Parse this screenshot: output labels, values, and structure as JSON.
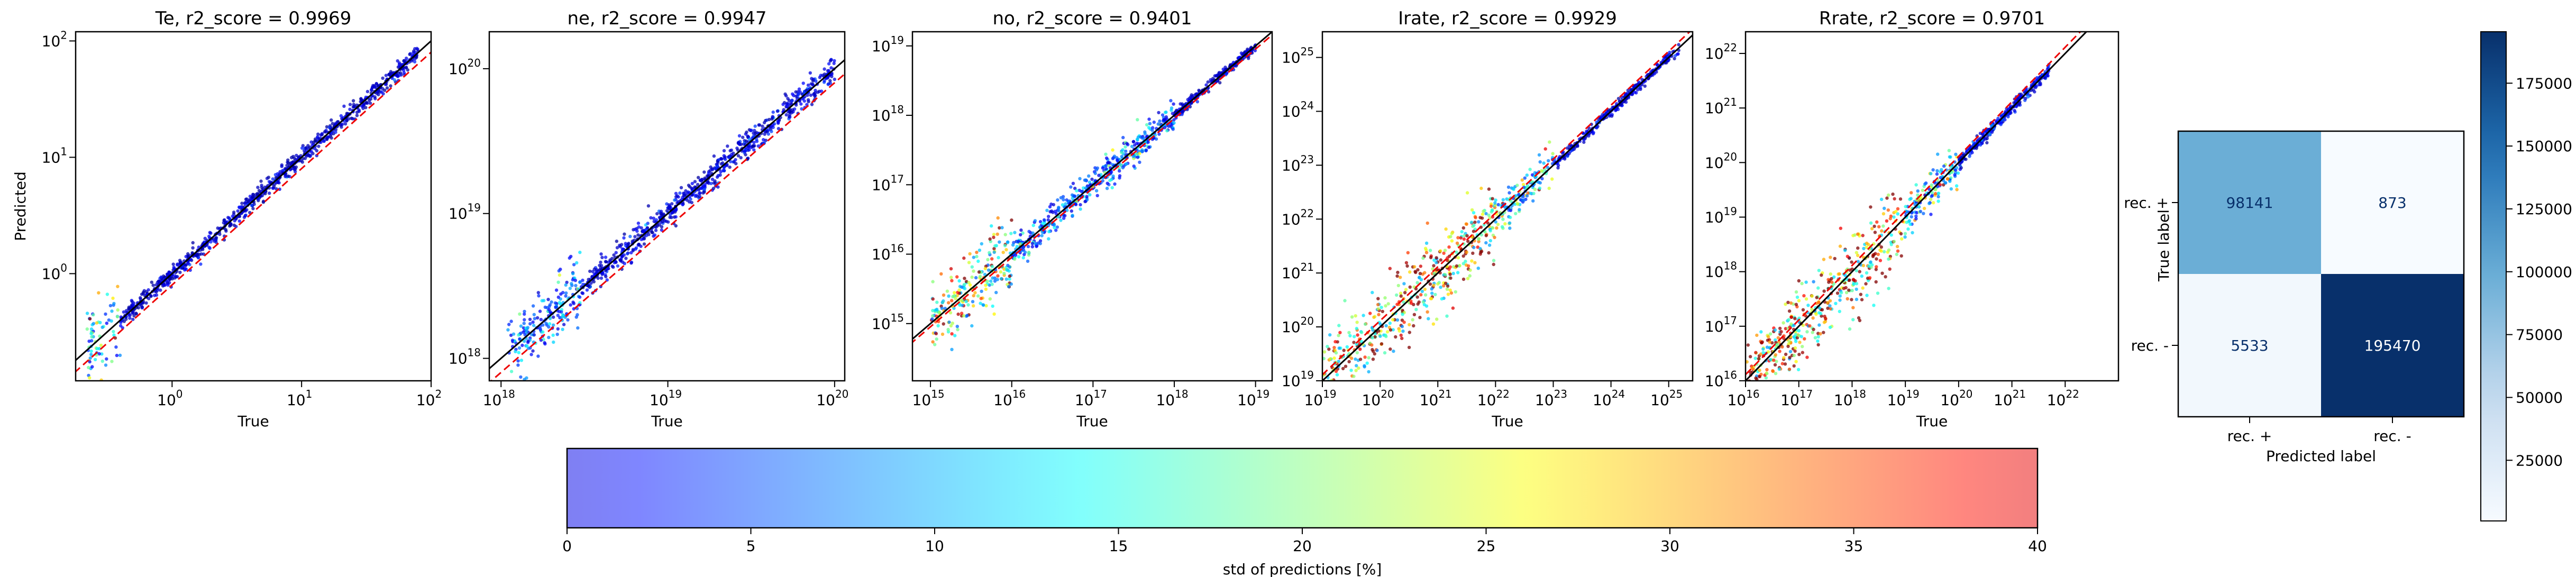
{
  "chart_data": [
    {
      "type": "scatter",
      "title": "Te, r2_score = 0.9969",
      "xlabel": "True",
      "ylabel": "Predicted",
      "xscale": "log",
      "yscale": "log",
      "xlim": [
        0.18,
        100
      ],
      "ylim": [
        0.12,
        120
      ],
      "x_ticks": [
        {
          "v": 1,
          "base": "10",
          "exp": "0"
        },
        {
          "v": 10,
          "base": "10",
          "exp": "1"
        },
        {
          "v": 100,
          "base": "10",
          "exp": "2"
        }
      ],
      "y_ticks": [
        {
          "v": 1,
          "base": "10",
          "exp": "0"
        },
        {
          "v": 10,
          "base": "10",
          "exp": "1"
        },
        {
          "v": 100,
          "base": "10",
          "exp": "2"
        }
      ],
      "trend": {
        "from": 0.22,
        "to": 80
      },
      "spread_bands": [
        {
          "x_range": [
            0.22,
            0.4
          ],
          "rel_std_pct": 20
        },
        {
          "x_range": [
            0.4,
            80
          ],
          "rel_std_pct": 4
        }
      ],
      "reference_line": {
        "style": "black solid",
        "slope": 1
      },
      "offset_line": {
        "style": "red dashed",
        "factor": 0.8
      }
    },
    {
      "type": "scatter",
      "title": "ne, r2_score = 0.9947",
      "xlabel": "True",
      "ylabel": "",
      "xscale": "log",
      "yscale": "log",
      "xlim": [
        8.5e+17,
        1.15e+20
      ],
      "ylim": [
        7e+17,
        1.8e+20
      ],
      "x_ticks": [
        {
          "v": 1e+18,
          "base": "10",
          "exp": "18"
        },
        {
          "v": 1e+19,
          "base": "10",
          "exp": "19"
        },
        {
          "v": 1e+20,
          "base": "10",
          "exp": "20"
        }
      ],
      "y_ticks": [
        {
          "v": 1e+18,
          "base": "10",
          "exp": "18"
        },
        {
          "v": 1e+19,
          "base": "10",
          "exp": "19"
        },
        {
          "v": 1e+20,
          "base": "10",
          "exp": "20"
        }
      ],
      "trend": {
        "from": 1.1e+18,
        "to": 1e+20
      },
      "spread_bands": [
        {
          "x_range": [
            1.1e+18,
            3e+18
          ],
          "rel_std_pct": 12
        },
        {
          "x_range": [
            3e+18,
            1e+20
          ],
          "rel_std_pct": 5
        }
      ],
      "reference_line": {
        "style": "black solid",
        "slope": 1
      },
      "offset_line": {
        "style": "red dashed",
        "factor": 0.8
      }
    },
    {
      "type": "scatter",
      "title": "no, r2_score = 0.9401",
      "xlabel": "True",
      "ylabel": "",
      "xscale": "log",
      "yscale": "log",
      "xlim": [
        600000000000000.0,
        1.6e+19
      ],
      "ylim": [
        150000000000000.0,
        1.6e+19
      ],
      "x_ticks": [
        {
          "v": 1000000000000000.0,
          "base": "10",
          "exp": "15"
        },
        {
          "v": 1e+16,
          "base": "10",
          "exp": "16"
        },
        {
          "v": 1e+17,
          "base": "10",
          "exp": "17"
        },
        {
          "v": 1e+18,
          "base": "10",
          "exp": "18"
        },
        {
          "v": 1e+19,
          "base": "10",
          "exp": "19"
        }
      ],
      "y_ticks": [
        {
          "v": 1000000000000000.0,
          "base": "10",
          "exp": "15"
        },
        {
          "v": 1e+16,
          "base": "10",
          "exp": "16"
        },
        {
          "v": 1e+17,
          "base": "10",
          "exp": "17"
        },
        {
          "v": 1e+18,
          "base": "10",
          "exp": "18"
        },
        {
          "v": 1e+19,
          "base": "10",
          "exp": "19"
        }
      ],
      "trend": {
        "from": 1000000000000000.0,
        "to": 1e+19
      },
      "spread_bands": [
        {
          "x_range": [
            1000000000000000.0,
            1e+16
          ],
          "rel_std_pct": 30
        },
        {
          "x_range": [
            1e+16,
            1e+18
          ],
          "rel_std_pct": 12
        },
        {
          "x_range": [
            1e+18,
            1e+19
          ],
          "rel_std_pct": 4
        }
      ],
      "reference_line": {
        "style": "black solid",
        "slope": 1
      },
      "offset_line": {
        "style": "red dashed",
        "factor": 0.9
      }
    },
    {
      "type": "scatter",
      "title": "Irate, r2_score = 0.9929",
      "xlabel": "True",
      "ylabel": "",
      "xscale": "log",
      "yscale": "log",
      "xlim": [
        1e+19,
        2.6e+25
      ],
      "ylim": [
        1e+19,
        3e+25
      ],
      "x_ticks": [
        {
          "v": 1e+19,
          "base": "10",
          "exp": "19"
        },
        {
          "v": 1e+20,
          "base": "10",
          "exp": "20"
        },
        {
          "v": 1e+21,
          "base": "10",
          "exp": "21"
        },
        {
          "v": 1e+22,
          "base": "10",
          "exp": "22"
        },
        {
          "v": 1e+23,
          "base": "10",
          "exp": "23"
        },
        {
          "v": 1e+24,
          "base": "10",
          "exp": "24"
        },
        {
          "v": 1e+25,
          "base": "10",
          "exp": "25"
        }
      ],
      "y_ticks": [
        {
          "v": 1e+19,
          "base": "10",
          "exp": "19"
        },
        {
          "v": 1e+20,
          "base": "10",
          "exp": "20"
        },
        {
          "v": 1e+21,
          "base": "10",
          "exp": "21"
        },
        {
          "v": 1e+22,
          "base": "10",
          "exp": "22"
        },
        {
          "v": 1e+23,
          "base": "10",
          "exp": "23"
        },
        {
          "v": 1e+24,
          "base": "10",
          "exp": "24"
        },
        {
          "v": 1e+25,
          "base": "10",
          "exp": "25"
        }
      ],
      "trend": {
        "from": 1e+19,
        "to": 1.5e+25
      },
      "spread_bands": [
        {
          "x_range": [
            1e+19,
            1e+22
          ],
          "rel_std_pct": 40
        },
        {
          "x_range": [
            1e+22,
            1e+23
          ],
          "rel_std_pct": 20
        },
        {
          "x_range": [
            1e+23,
            1.5e+25
          ],
          "rel_std_pct": 5
        }
      ],
      "reference_line": {
        "style": "black solid",
        "slope": 1
      },
      "offset_line": {
        "style": "red dashed",
        "factor": 1.3
      }
    },
    {
      "type": "scatter",
      "title": "Rrate, r2_score = 0.9701",
      "xlabel": "True",
      "ylabel": "",
      "xscale": "log",
      "yscale": "log",
      "xlim": [
        1e+16,
        1e+23
      ],
      "ylim": [
        1e+16,
        2.5e+22
      ],
      "x_ticks": [
        {
          "v": 1e+16,
          "base": "10",
          "exp": "16"
        },
        {
          "v": 1e+17,
          "base": "10",
          "exp": "17"
        },
        {
          "v": 1e+18,
          "base": "10",
          "exp": "18"
        },
        {
          "v": 1e+19,
          "base": "10",
          "exp": "19"
        },
        {
          "v": 1e+20,
          "base": "10",
          "exp": "20"
        },
        {
          "v": 1e+21,
          "base": "10",
          "exp": "21"
        },
        {
          "v": 1e+22,
          "base": "10",
          "exp": "22"
        }
      ],
      "y_ticks": [
        {
          "v": 1e+16,
          "base": "10",
          "exp": "16"
        },
        {
          "v": 1e+17,
          "base": "10",
          "exp": "17"
        },
        {
          "v": 1e+18,
          "base": "10",
          "exp": "18"
        },
        {
          "v": 1e+19,
          "base": "10",
          "exp": "19"
        },
        {
          "v": 1e+20,
          "base": "10",
          "exp": "20"
        },
        {
          "v": 1e+21,
          "base": "10",
          "exp": "21"
        },
        {
          "v": 1e+22,
          "base": "10",
          "exp": "22"
        }
      ],
      "trend": {
        "from": 1e+16,
        "to": 5e+21
      },
      "spread_bands": [
        {
          "x_range": [
            1e+16,
            1e+19
          ],
          "rel_std_pct": 40
        },
        {
          "x_range": [
            1e+19,
            1e+20
          ],
          "rel_std_pct": 20
        },
        {
          "x_range": [
            1e+20,
            5e+21
          ],
          "rel_std_pct": 6
        }
      ],
      "reference_line": {
        "style": "black solid",
        "slope": 1
      },
      "offset_line": {
        "style": "red dashed",
        "factor": 1.3
      }
    },
    {
      "type": "heatmap",
      "title": "",
      "xlabel": "Predicted label",
      "ylabel": "True label",
      "x_categories": [
        "rec. +",
        "rec. -"
      ],
      "y_categories": [
        "rec. +",
        "rec. -"
      ],
      "matrix": [
        [
          98141,
          873
        ],
        [
          5533,
          195470
        ]
      ],
      "colormap": "Blues",
      "colorbar": {
        "min": 873,
        "max": 195470,
        "ticks": [
          "25000",
          "50000",
          "75000",
          "100000",
          "125000",
          "150000",
          "175000"
        ]
      }
    },
    {
      "type": "colorbar",
      "label": "std of predictions [%]",
      "colormap": "jet (semi-transparent)",
      "range": [
        0,
        40
      ],
      "ticks": [
        "0",
        "5",
        "10",
        "15",
        "20",
        "25",
        "30",
        "35",
        "40"
      ]
    }
  ]
}
